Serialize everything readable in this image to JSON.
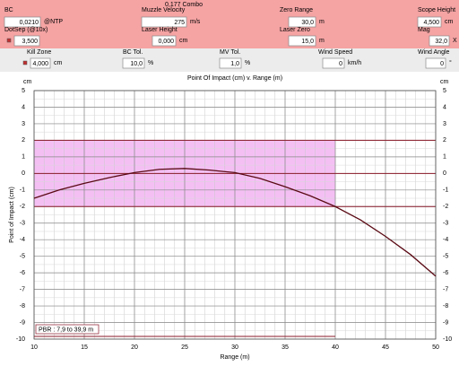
{
  "header": {
    "title": "0,177 Combo"
  },
  "fields": [
    {
      "label": "BC",
      "value": "0,0210",
      "unit": "@NTP"
    },
    {
      "label": "Muzzle Velocity",
      "value": "275",
      "unit": "m/s"
    },
    {
      "label": "Zero Range",
      "value": "30,0",
      "unit": "m"
    },
    {
      "label": "Scope Height",
      "value": "4,500",
      "unit": "cm"
    },
    {
      "label": "DotSep (@10x)",
      "value": "3,500"
    },
    {
      "label": "Laser Height",
      "value": "0,000",
      "unit": "cm"
    },
    {
      "label": "Laser Zero",
      "value": "15,0",
      "unit": "m"
    },
    {
      "label": "Mag",
      "value": "32,0",
      "unit": "X"
    },
    {
      "label": "Kill Zone",
      "value": "4,000",
      "unit": "cm"
    },
    {
      "label": "BC Tol.",
      "value": "10,0",
      "unit": "%"
    },
    {
      "label": "MV Tol.",
      "value": "1,0",
      "unit": "%"
    },
    {
      "label": "Wind Speed",
      "value": "0",
      "unit": "km/h"
    },
    {
      "label": "Wind Angle",
      "value": "0",
      "unit": "°"
    }
  ],
  "chart_data": {
    "type": "line",
    "title": "Point Of Impact (cm) v. Range (m)",
    "x_label": "Range (m)",
    "y_label": "Point of Impact (cm)",
    "y_unit": "cm",
    "x": [
      10,
      12.5,
      15,
      17.5,
      20,
      22.5,
      25,
      27.5,
      30,
      32.5,
      35,
      37.5,
      40,
      42.5,
      45,
      47.5,
      50
    ],
    "values": [
      -1.5,
      -1.0,
      -0.6,
      -0.25,
      0.05,
      0.25,
      0.3,
      0.2,
      0.05,
      -0.3,
      -0.8,
      -1.35,
      -2.0,
      -2.8,
      -3.8,
      -4.9,
      -6.2
    ],
    "color": "#5a0a14",
    "xlim": [
      10,
      50
    ],
    "ylim": [
      -10,
      5
    ],
    "xticks": [
      10,
      15,
      20,
      25,
      30,
      35,
      40,
      45,
      50
    ],
    "yticks": [
      -10,
      -9,
      -8,
      -7,
      -6,
      -5,
      -4,
      -3,
      -2,
      -1,
      0,
      1,
      2,
      3,
      4,
      5
    ],
    "grid": true,
    "minor_xstep": 1,
    "minor_ystep": 0.5,
    "zone": {
      "xlim": [
        10,
        40
      ],
      "ylim": [
        -2,
        2
      ],
      "color": "#f4c0f4"
    },
    "hlines": [
      2,
      0,
      -2
    ],
    "hline_color": "#8b1a2a",
    "annotation": "PBR : 7,9 to 39,9 m"
  }
}
